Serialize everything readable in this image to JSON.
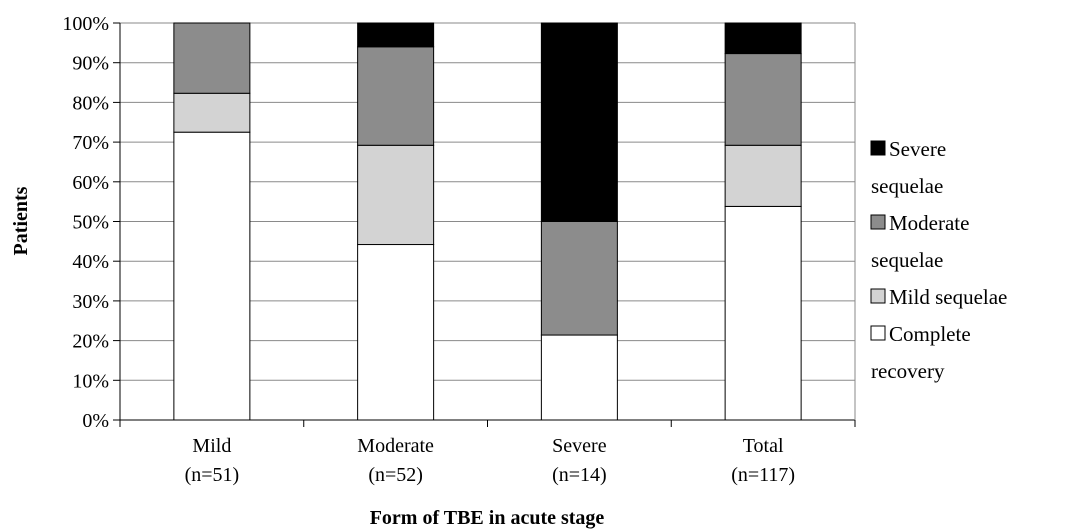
{
  "chart_data": {
    "type": "bar",
    "stacked": true,
    "percent_stacked": true,
    "categories": [
      "Mild",
      "Moderate",
      "Severe",
      "Total"
    ],
    "category_sublabels": [
      "(n=51)",
      "(n=52)",
      "(n=14)",
      "(n=117)"
    ],
    "series": [
      {
        "name": "Complete recovery",
        "color": "#ffffff",
        "values": [
          72.5,
          44.2,
          21.4,
          53.8
        ]
      },
      {
        "name": "Mild sequelae",
        "color": "#d3d3d3",
        "values": [
          9.8,
          25.0,
          0,
          15.4
        ]
      },
      {
        "name": "Moderate sequelae",
        "color": "#8c8c8c",
        "values": [
          17.7,
          24.8,
          28.6,
          23.1
        ]
      },
      {
        "name": "Severe sequelae",
        "color": "#000000",
        "values": [
          0,
          6.0,
          50.0,
          7.7
        ]
      }
    ],
    "legend_entries": [
      {
        "name": "Severe sequelae",
        "lines": [
          "Severe",
          "sequelae"
        ],
        "color": "#000000"
      },
      {
        "name": "Moderate sequelae",
        "lines": [
          "Moderate",
          "sequelae"
        ],
        "color": "#8c8c8c"
      },
      {
        "name": "Mild sequelae",
        "lines": [
          "Mild sequelae"
        ],
        "color": "#d3d3d3"
      },
      {
        "name": "Complete recovery",
        "lines": [
          "Complete",
          "recovery"
        ],
        "color": "#ffffff"
      }
    ],
    "xlabel": "Form of TBE in acute stage",
    "ylabel": "Patients",
    "ylim": [
      0,
      100
    ],
    "yticks": [
      0,
      10,
      20,
      30,
      40,
      50,
      60,
      70,
      80,
      90,
      100
    ],
    "ytick_suffix": "%",
    "grid": true,
    "legend_position": "right"
  }
}
